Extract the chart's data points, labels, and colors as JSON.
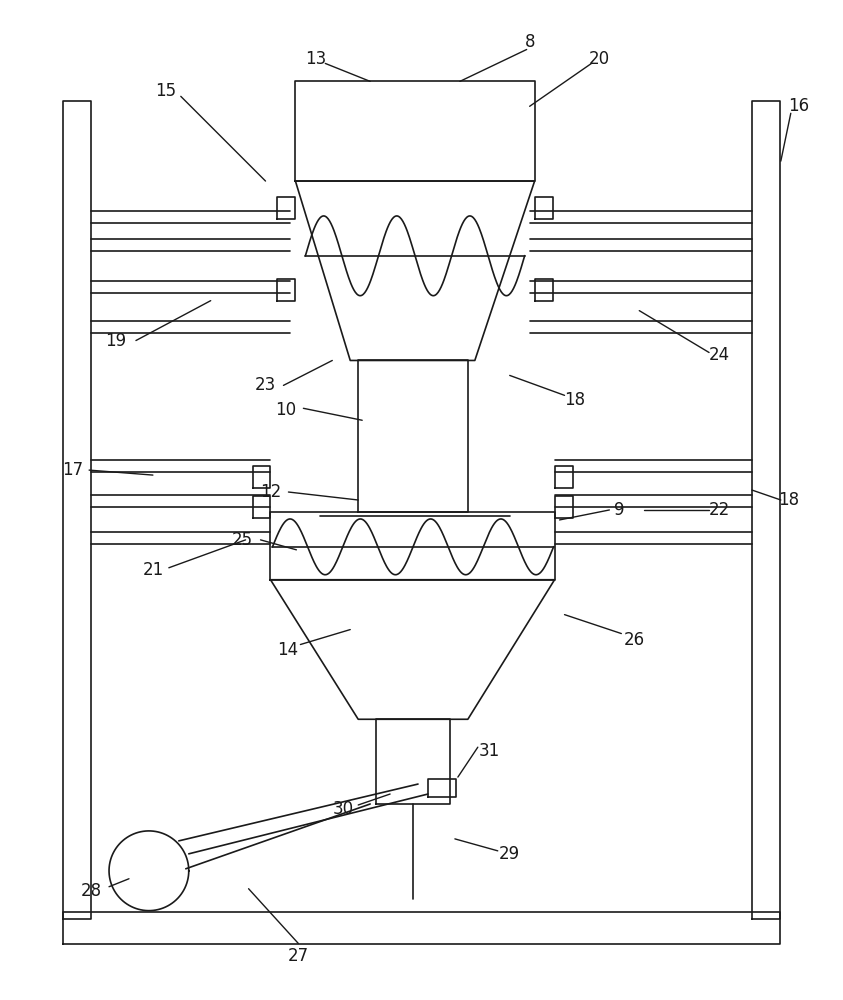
{
  "bg_color": "#ffffff",
  "line_color": "#1a1a1a",
  "lw_main": 1.8,
  "lw_thin": 1.2,
  "fig_width": 8.43,
  "fig_height": 10.0
}
